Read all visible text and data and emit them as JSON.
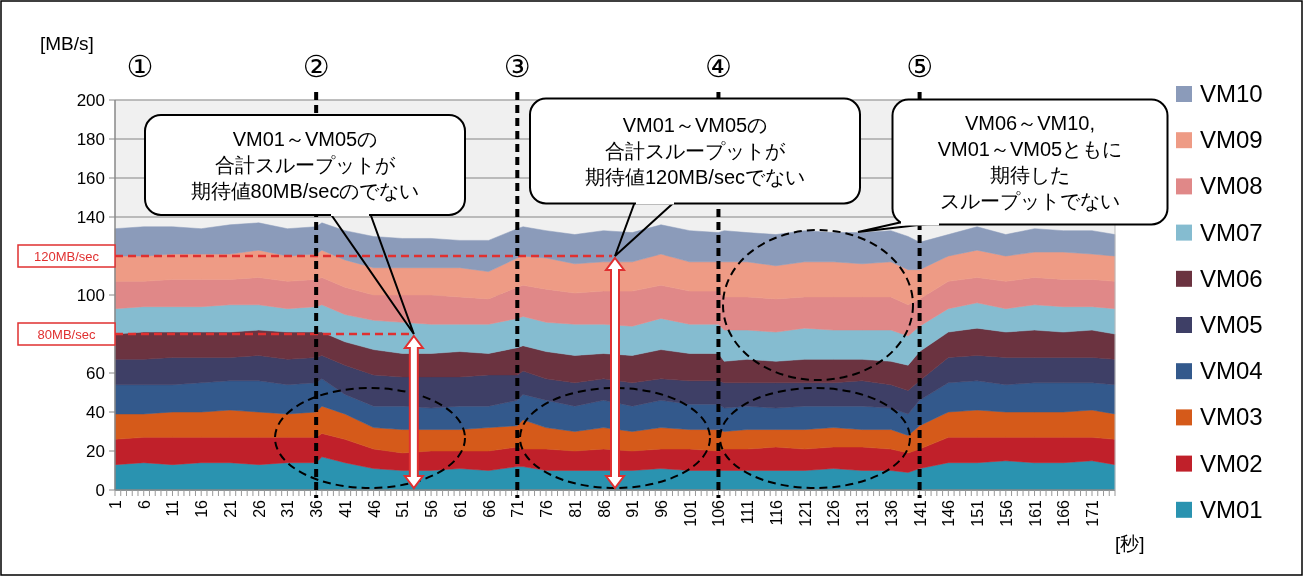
{
  "chart_data": {
    "type": "area",
    "stacked": true,
    "ylabel": "[MB/s]",
    "xlabel": "[秒]",
    "x": [
      1,
      6,
      11,
      16,
      21,
      26,
      31,
      36,
      37,
      41,
      46,
      51,
      56,
      61,
      66,
      71,
      72,
      76,
      81,
      86,
      91,
      96,
      101,
      106,
      107,
      111,
      116,
      121,
      126,
      131,
      136,
      139,
      141,
      146,
      151,
      156,
      161,
      166,
      171,
      175
    ],
    "xlim": [
      1,
      175
    ],
    "xticks": [
      1,
      6,
      11,
      16,
      21,
      26,
      31,
      36,
      41,
      46,
      51,
      56,
      61,
      66,
      71,
      76,
      81,
      86,
      91,
      96,
      101,
      106,
      111,
      116,
      121,
      126,
      131,
      136,
      141,
      146,
      151,
      156,
      161,
      166,
      171
    ],
    "ylim": [
      0,
      200
    ],
    "yticks": [
      0,
      20,
      40,
      60,
      {
        "value": 80,
        "label": null
      },
      100,
      {
        "value": 120,
        "label": null
      },
      140,
      160,
      180,
      200
    ],
    "grid": "y",
    "legend": "right",
    "series": [
      {
        "name": "VM01",
        "color": "#2a93b0",
        "values": [
          13,
          14,
          13,
          14,
          14,
          13,
          14,
          14,
          17,
          14,
          11,
          10,
          10,
          11,
          10,
          12,
          12,
          10,
          10,
          10,
          10,
          11,
          10,
          10,
          10,
          10,
          10,
          10,
          11,
          10,
          10,
          9,
          11,
          14,
          14,
          15,
          14,
          14,
          15,
          13
        ]
      },
      {
        "name": "VM02",
        "color": "#c0202a",
        "values": [
          13,
          13,
          14,
          13,
          13,
          14,
          13,
          13,
          12,
          12,
          10,
          9,
          10,
          9,
          10,
          10,
          9,
          11,
          10,
          11,
          10,
          10,
          11,
          10,
          11,
          11,
          12,
          11,
          11,
          12,
          11,
          10,
          10,
          13,
          13,
          12,
          13,
          13,
          12,
          13
        ]
      },
      {
        "name": "VM03",
        "color": "#d55a1a",
        "values": [
          13,
          12,
          13,
          13,
          14,
          13,
          12,
          13,
          14,
          13,
          11,
          12,
          11,
          11,
          12,
          11,
          15,
          11,
          10,
          11,
          10,
          11,
          10,
          11,
          9,
          10,
          9,
          10,
          10,
          9,
          10,
          9,
          12,
          13,
          14,
          13,
          13,
          13,
          14,
          13
        ]
      },
      {
        "name": "VM04",
        "color": "#33598c",
        "values": [
          15,
          15,
          14,
          15,
          15,
          16,
          15,
          15,
          14,
          10,
          11,
          12,
          11,
          12,
          11,
          13,
          13,
          14,
          13,
          14,
          13,
          14,
          13,
          13,
          12,
          12,
          11,
          12,
          11,
          12,
          11,
          11,
          13,
          15,
          15,
          14,
          15,
          15,
          14,
          15
        ]
      },
      {
        "name": "VM05",
        "color": "#3e3f66",
        "values": [
          13,
          13,
          14,
          13,
          12,
          13,
          13,
          13,
          12,
          15,
          16,
          15,
          16,
          15,
          16,
          13,
          12,
          11,
          12,
          11,
          12,
          11,
          12,
          12,
          13,
          12,
          13,
          12,
          12,
          13,
          12,
          12,
          10,
          13,
          13,
          14,
          13,
          13,
          13,
          13
        ]
      },
      {
        "name": "VM06",
        "color": "#6b3340",
        "values": [
          13,
          14,
          13,
          13,
          13,
          13,
          14,
          13,
          12,
          12,
          13,
          12,
          12,
          13,
          11,
          14,
          13,
          14,
          14,
          13,
          14,
          15,
          14,
          14,
          11,
          12,
          11,
          12,
          12,
          11,
          12,
          13,
          15,
          13,
          14,
          13,
          14,
          13,
          14,
          13
        ]
      },
      {
        "name": "VM07",
        "color": "#85bcd0",
        "values": [
          13,
          13,
          13,
          13,
          14,
          13,
          12,
          13,
          14,
          14,
          15,
          16,
          15,
          14,
          15,
          15,
          15,
          15,
          16,
          15,
          15,
          16,
          15,
          15,
          16,
          15,
          15,
          16,
          15,
          15,
          16,
          15,
          13,
          12,
          13,
          12,
          13,
          13,
          12,
          13
        ]
      },
      {
        "name": "VM08",
        "color": "#e08888",
        "values": [
          14,
          13,
          14,
          14,
          13,
          14,
          14,
          14,
          14,
          14,
          13,
          14,
          15,
          14,
          13,
          16,
          16,
          17,
          16,
          17,
          18,
          17,
          17,
          17,
          17,
          17,
          17,
          16,
          17,
          17,
          17,
          16,
          14,
          14,
          13,
          14,
          14,
          14,
          14,
          14
        ]
      },
      {
        "name": "VM09",
        "color": "#ee9b85",
        "values": [
          13,
          13,
          13,
          13,
          13,
          14,
          13,
          13,
          14,
          14,
          14,
          14,
          14,
          15,
          14,
          15,
          15,
          16,
          15,
          15,
          15,
          16,
          15,
          15,
          18,
          18,
          17,
          18,
          18,
          17,
          18,
          18,
          15,
          13,
          14,
          13,
          13,
          14,
          13,
          13
        ]
      },
      {
        "name": "VM10",
        "color": "#8b9bba",
        "values": [
          14,
          15,
          14,
          13,
          15,
          14,
          14,
          14,
          14,
          15,
          16,
          15,
          15,
          14,
          16,
          15,
          15,
          14,
          15,
          16,
          15,
          15,
          16,
          15,
          16,
          15,
          16,
          16,
          15,
          16,
          16,
          17,
          14,
          11,
          12,
          11,
          12,
          11,
          12,
          11
        ]
      }
    ],
    "ref_lines": [
      {
        "axis": "y",
        "value": 120,
        "label": "120MB/sec",
        "color": "#e03030",
        "line_style": "dashed"
      },
      {
        "axis": "y",
        "value": 80,
        "label": "80MB/sec",
        "color": "#e03030",
        "line_style": "dashed"
      },
      {
        "axis": "x",
        "value": 36,
        "label": "②",
        "color": "#000000",
        "line_style": "dashed"
      },
      {
        "axis": "x",
        "value": 71,
        "label": "③",
        "color": "#000000",
        "line_style": "dashed"
      },
      {
        "axis": "x",
        "value": 106,
        "label": "④",
        "color": "#000000",
        "line_style": "dashed"
      },
      {
        "axis": "x",
        "value": 141,
        "label": "⑤",
        "color": "#000000",
        "line_style": "dashed"
      }
    ],
    "annotations": [
      "①",
      "VM01～VM05の合計スループットが期待値80MB/secのでない",
      "VM01～VM05の合計スループットが期待値120MB/secでない",
      "VM06～VM10, VM01～VM05ともに期待したスループットでない"
    ]
  }
}
